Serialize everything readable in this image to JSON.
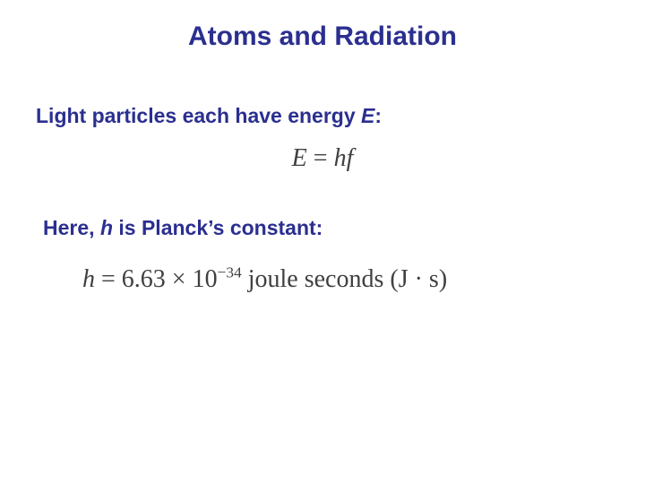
{
  "title": {
    "text": "Atoms and Radiation",
    "color": "#2b2f8f",
    "fontsize": 30
  },
  "line1": {
    "prefix": "Light particles each have energy ",
    "emph": "E",
    "suffix": ":",
    "color": "#2b2f8f",
    "fontsize": 23
  },
  "formula1": {
    "lhs": "E",
    "eq": " = ",
    "rhs1": "h",
    "rhs2": "f",
    "color": "#404040",
    "fontsize": 28
  },
  "line2": {
    "prefix": "Here, ",
    "emph": "h",
    "suffix": " is Planck’s constant:",
    "color": "#2b2f8f",
    "fontsize": 23
  },
  "formula2": {
    "lhs": "h",
    "eq": " = ",
    "coeff": "6.63 × 10",
    "exp": "−34",
    "units": " joule seconds (J · s)",
    "color": "#404040",
    "fontsize": 28
  },
  "background_color": "#ffffff"
}
